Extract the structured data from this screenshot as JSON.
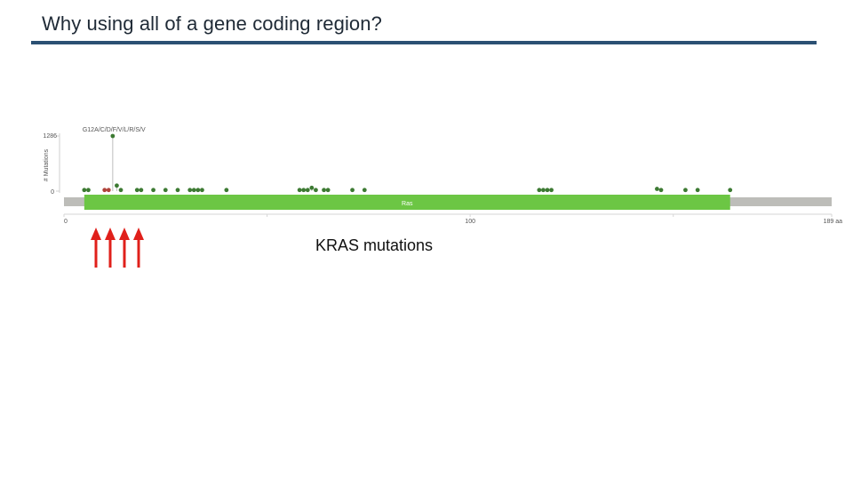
{
  "slide": {
    "title": "Why using all of a gene coding region?",
    "caption": "KRAS mutations"
  },
  "chart_data": {
    "type": "scatter",
    "subtype": "lollipop",
    "ylabel": "# Mutations",
    "y_ticks": [
      "0",
      "1286"
    ],
    "x_ticks": [
      "0",
      "100",
      "189 aa"
    ],
    "x_range": [
      0,
      189
    ],
    "y_max_label_value": 1286,
    "domain": {
      "name": "Ras",
      "start": 5,
      "end": 164,
      "color": "#6cc644"
    },
    "hotspot": {
      "label": "G12A/C/D/F/V/L/R/S/V",
      "position": 12
    },
    "mutations": [
      {
        "pos": 5,
        "level": 0.02,
        "color": "#3c7a32"
      },
      {
        "pos": 6,
        "level": 0.02,
        "color": "#3c7a32"
      },
      {
        "pos": 10,
        "level": 0.02,
        "color": "#b0423a"
      },
      {
        "pos": 11,
        "level": 0.02,
        "color": "#b0423a"
      },
      {
        "pos": 12,
        "level": 1.0,
        "color": "#3c7a32"
      },
      {
        "pos": 13,
        "level": 0.1,
        "color": "#3c7a32"
      },
      {
        "pos": 14,
        "level": 0.02,
        "color": "#3c7a32"
      },
      {
        "pos": 18,
        "level": 0.02,
        "color": "#3c7a32"
      },
      {
        "pos": 19,
        "level": 0.02,
        "color": "#3c7a32"
      },
      {
        "pos": 22,
        "level": 0.02,
        "color": "#3c7a32"
      },
      {
        "pos": 25,
        "level": 0.02,
        "color": "#3c7a32"
      },
      {
        "pos": 28,
        "level": 0.02,
        "color": "#3c7a32"
      },
      {
        "pos": 31,
        "level": 0.02,
        "color": "#3c7a32"
      },
      {
        "pos": 32,
        "level": 0.02,
        "color": "#3c7a32"
      },
      {
        "pos": 33,
        "level": 0.02,
        "color": "#3c7a32"
      },
      {
        "pos": 34,
        "level": 0.02,
        "color": "#3c7a32"
      },
      {
        "pos": 40,
        "level": 0.02,
        "color": "#3c7a32"
      },
      {
        "pos": 58,
        "level": 0.02,
        "color": "#3c7a32"
      },
      {
        "pos": 59,
        "level": 0.02,
        "color": "#3c7a32"
      },
      {
        "pos": 60,
        "level": 0.02,
        "color": "#3c7a32"
      },
      {
        "pos": 61,
        "level": 0.06,
        "color": "#3c7a32"
      },
      {
        "pos": 62,
        "level": 0.02,
        "color": "#3c7a32"
      },
      {
        "pos": 64,
        "level": 0.02,
        "color": "#3c7a32"
      },
      {
        "pos": 65,
        "level": 0.02,
        "color": "#3c7a32"
      },
      {
        "pos": 71,
        "level": 0.02,
        "color": "#3c7a32"
      },
      {
        "pos": 74,
        "level": 0.02,
        "color": "#3c7a32"
      },
      {
        "pos": 117,
        "level": 0.02,
        "color": "#3c7a32"
      },
      {
        "pos": 118,
        "level": 0.02,
        "color": "#3c7a32"
      },
      {
        "pos": 119,
        "level": 0.02,
        "color": "#3c7a32"
      },
      {
        "pos": 120,
        "level": 0.02,
        "color": "#3c7a32"
      },
      {
        "pos": 146,
        "level": 0.04,
        "color": "#3c7a32"
      },
      {
        "pos": 147,
        "level": 0.02,
        "color": "#3c7a32"
      },
      {
        "pos": 153,
        "level": 0.02,
        "color": "#3c7a32"
      },
      {
        "pos": 156,
        "level": 0.02,
        "color": "#3c7a32"
      },
      {
        "pos": 164,
        "level": 0.02,
        "color": "#3c7a32"
      }
    ],
    "arrows": {
      "count": 4,
      "color": "#e0201b"
    }
  }
}
